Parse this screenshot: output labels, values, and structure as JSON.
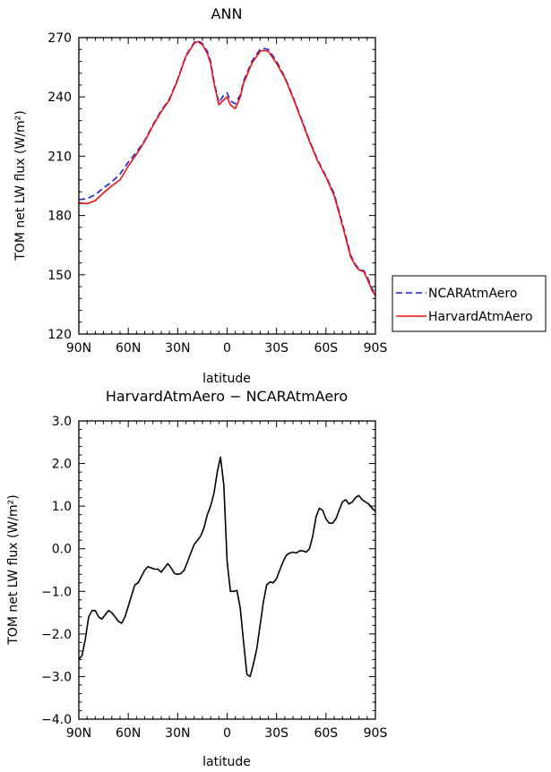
{
  "chart_data": [
    {
      "type": "line",
      "title": "ANN",
      "xlabel": "latitude",
      "ylabel": "TOM net LW flux (W/m²)",
      "xlim": [
        90,
        -90
      ],
      "ylim": [
        120,
        270
      ],
      "xtick_values": [
        90,
        60,
        30,
        0,
        -30,
        -60,
        -90
      ],
      "xtick_labels": [
        "90N",
        "60N",
        "30N",
        "0",
        "30S",
        "60S",
        "90S"
      ],
      "ytick_values": [
        120,
        150,
        180,
        210,
        240,
        270
      ],
      "ytick_labels": [
        "120",
        "150",
        "180",
        "210",
        "240",
        "270"
      ],
      "legend_position": "right",
      "x": [
        90,
        85,
        80,
        75,
        70,
        65,
        60,
        55,
        50,
        45,
        40,
        35,
        30,
        25,
        20,
        18,
        15,
        12,
        10,
        8,
        5,
        2,
        0,
        -2,
        -5,
        -8,
        -10,
        -15,
        -20,
        -22,
        -25,
        -30,
        -35,
        -40,
        -45,
        -50,
        -55,
        -60,
        -65,
        -70,
        -75,
        -78,
        -80,
        -83,
        -85,
        -88,
        -90
      ],
      "series": [
        {
          "name": "NCARAtmAero",
          "color": "#1f1fd0",
          "dash": "dashed",
          "values": [
            188,
            188.5,
            190.5,
            194,
            197,
            201,
            207,
            212,
            218,
            226,
            233,
            239,
            249,
            261,
            267.5,
            268.5,
            267,
            263,
            258,
            248,
            237,
            241,
            242,
            238,
            236.5,
            241,
            248,
            258,
            264,
            264.5,
            264,
            258,
            250,
            240,
            229,
            218,
            208,
            200,
            191,
            176,
            160,
            155,
            153,
            152,
            149,
            143,
            140
          ]
        },
        {
          "name": "HarvardAtmAero",
          "color": "#ee1111",
          "dash": "solid",
          "values": [
            186.5,
            186,
            187.5,
            191.5,
            195,
            198,
            205,
            211,
            217.5,
            225.5,
            232.5,
            238.5,
            248.5,
            260.5,
            267,
            268,
            266.5,
            262,
            257,
            247,
            236,
            238.5,
            240,
            236,
            234,
            240,
            247,
            257,
            263,
            263.5,
            263,
            257,
            249.5,
            239.5,
            228.5,
            217.5,
            207.5,
            199.5,
            190,
            175,
            159,
            154.5,
            152.5,
            151.5,
            148,
            142,
            139.5
          ]
        }
      ]
    },
    {
      "type": "line",
      "title": "HarvardAtmAero − NCARAtmAero",
      "xlabel": "latitude",
      "ylabel": "TOM net LW flux (W/m²)",
      "xlim": [
        90,
        -90
      ],
      "ylim": [
        -4,
        3
      ],
      "xtick_values": [
        90,
        60,
        30,
        0,
        -30,
        -60,
        -90
      ],
      "xtick_labels": [
        "90N",
        "60N",
        "30N",
        "0",
        "30S",
        "60S",
        "90S"
      ],
      "ytick_values": [
        -4,
        -3,
        -2,
        -1,
        0,
        1,
        2,
        3
      ],
      "ytick_labels": [
        "−4.0",
        "−3.0",
        "−2.0",
        "−1.0",
        "0.0",
        "1.0",
        "2.0",
        "3.0"
      ],
      "x": [
        90,
        88,
        86,
        84,
        82,
        80,
        78,
        76,
        74,
        72,
        70,
        68,
        66,
        64,
        62,
        60,
        58,
        56,
        54,
        52,
        50,
        48,
        46,
        44,
        42,
        40,
        38,
        36,
        34,
        32,
        30,
        28,
        26,
        24,
        22,
        20,
        18,
        16,
        14,
        12,
        10,
        8,
        6,
        4,
        2,
        0,
        -2,
        -4,
        -6,
        -8,
        -10,
        -12,
        -14,
        -16,
        -18,
        -20,
        -22,
        -24,
        -26,
        -28,
        -30,
        -32,
        -34,
        -36,
        -38,
        -40,
        -42,
        -44,
        -46,
        -48,
        -50,
        -52,
        -54,
        -56,
        -58,
        -60,
        -62,
        -64,
        -66,
        -68,
        -70,
        -72,
        -74,
        -76,
        -78,
        -80,
        -82,
        -84,
        -86,
        -88,
        -90
      ],
      "series": [
        {
          "color": "#000000",
          "dash": "solid",
          "values": [
            -2.6,
            -2.5,
            -2.1,
            -1.6,
            -1.45,
            -1.45,
            -1.6,
            -1.65,
            -1.55,
            -1.45,
            -1.5,
            -1.6,
            -1.7,
            -1.75,
            -1.6,
            -1.35,
            -1.1,
            -0.85,
            -0.8,
            -0.65,
            -0.5,
            -0.42,
            -0.45,
            -0.48,
            -0.48,
            -0.55,
            -0.45,
            -0.35,
            -0.45,
            -0.58,
            -0.6,
            -0.58,
            -0.5,
            -0.3,
            -0.1,
            0.1,
            0.2,
            0.3,
            0.5,
            0.8,
            1.0,
            1.3,
            1.8,
            2.15,
            1.5,
            -0.3,
            -1.0,
            -1.0,
            -0.98,
            -1.4,
            -2.2,
            -2.95,
            -3.0,
            -2.7,
            -2.35,
            -1.8,
            -1.25,
            -0.85,
            -0.78,
            -0.8,
            -0.7,
            -0.5,
            -0.3,
            -0.15,
            -0.1,
            -0.08,
            -0.1,
            -0.05,
            -0.05,
            -0.08,
            0.0,
            0.3,
            0.75,
            0.95,
            0.9,
            0.7,
            0.6,
            0.6,
            0.7,
            0.9,
            1.1,
            1.15,
            1.05,
            1.1,
            1.2,
            1.25,
            1.15,
            1.1,
            1.05,
            0.95,
            0.88
          ]
        }
      ]
    }
  ]
}
